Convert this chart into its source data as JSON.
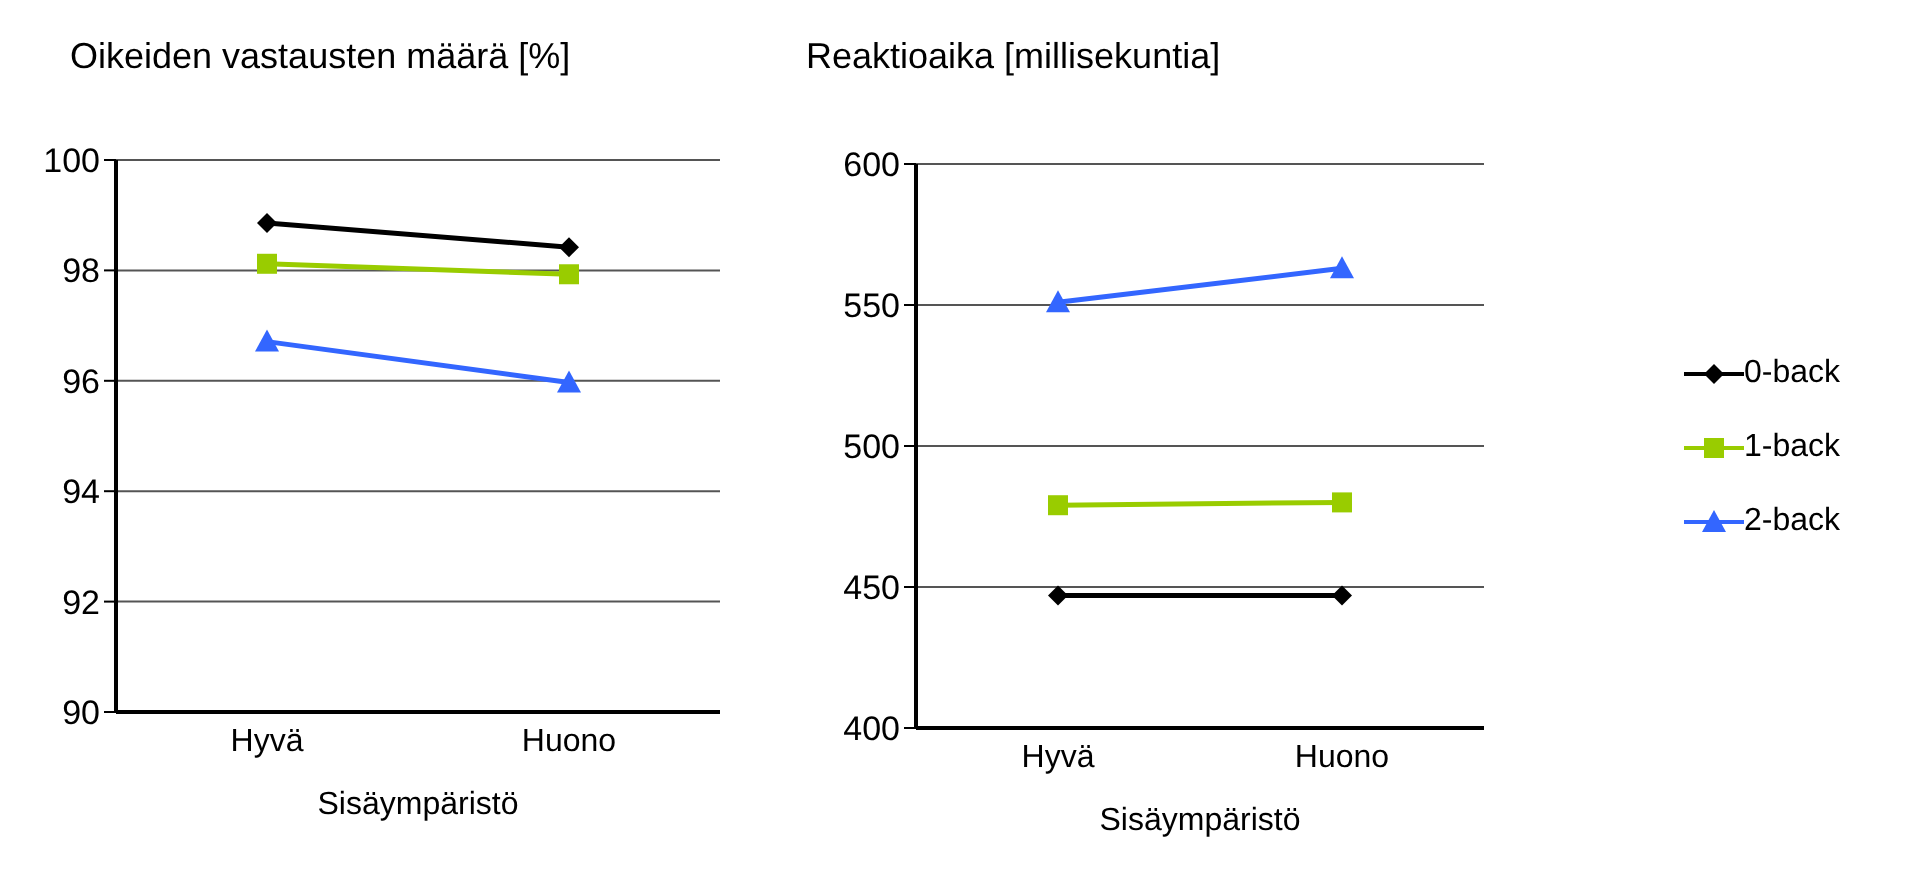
{
  "chart_data": [
    {
      "type": "line",
      "title": "Oikeiden vastausten määrä [%]",
      "xlabel": "Sisäympäristö",
      "categories": [
        "Hyvä",
        "Huono"
      ],
      "ylim": [
        90,
        100
      ],
      "yticks": [
        90,
        92,
        94,
        96,
        98,
        100
      ],
      "grid": "y",
      "legend": false,
      "series": [
        {
          "color": "#000000",
          "marker": "diamond",
          "values": [
            98.86,
            98.42
          ]
        },
        {
          "color": "#99cc00",
          "marker": "square",
          "values": [
            98.12,
            97.93
          ]
        },
        {
          "color": "#3366ff",
          "marker": "triangle",
          "values": [
            96.71,
            95.97
          ]
        }
      ]
    },
    {
      "type": "line",
      "title": "Reaktioaika [millisekuntia]",
      "xlabel": "Sisäympäristö",
      "categories": [
        "Hyvä",
        "Huono"
      ],
      "ylim": [
        400,
        600
      ],
      "yticks": [
        400,
        450,
        500,
        550,
        600
      ],
      "grid": "y",
      "legend": "right",
      "series": [
        {
          "name": "0-back",
          "color": "#000000",
          "marker": "diamond",
          "values": [
            447,
            447
          ]
        },
        {
          "name": "1-back",
          "color": "#99cc00",
          "marker": "square",
          "values": [
            479,
            480
          ]
        },
        {
          "name": "2-back",
          "color": "#3366ff",
          "marker": "triangle",
          "values": [
            551,
            563
          ]
        }
      ]
    }
  ]
}
